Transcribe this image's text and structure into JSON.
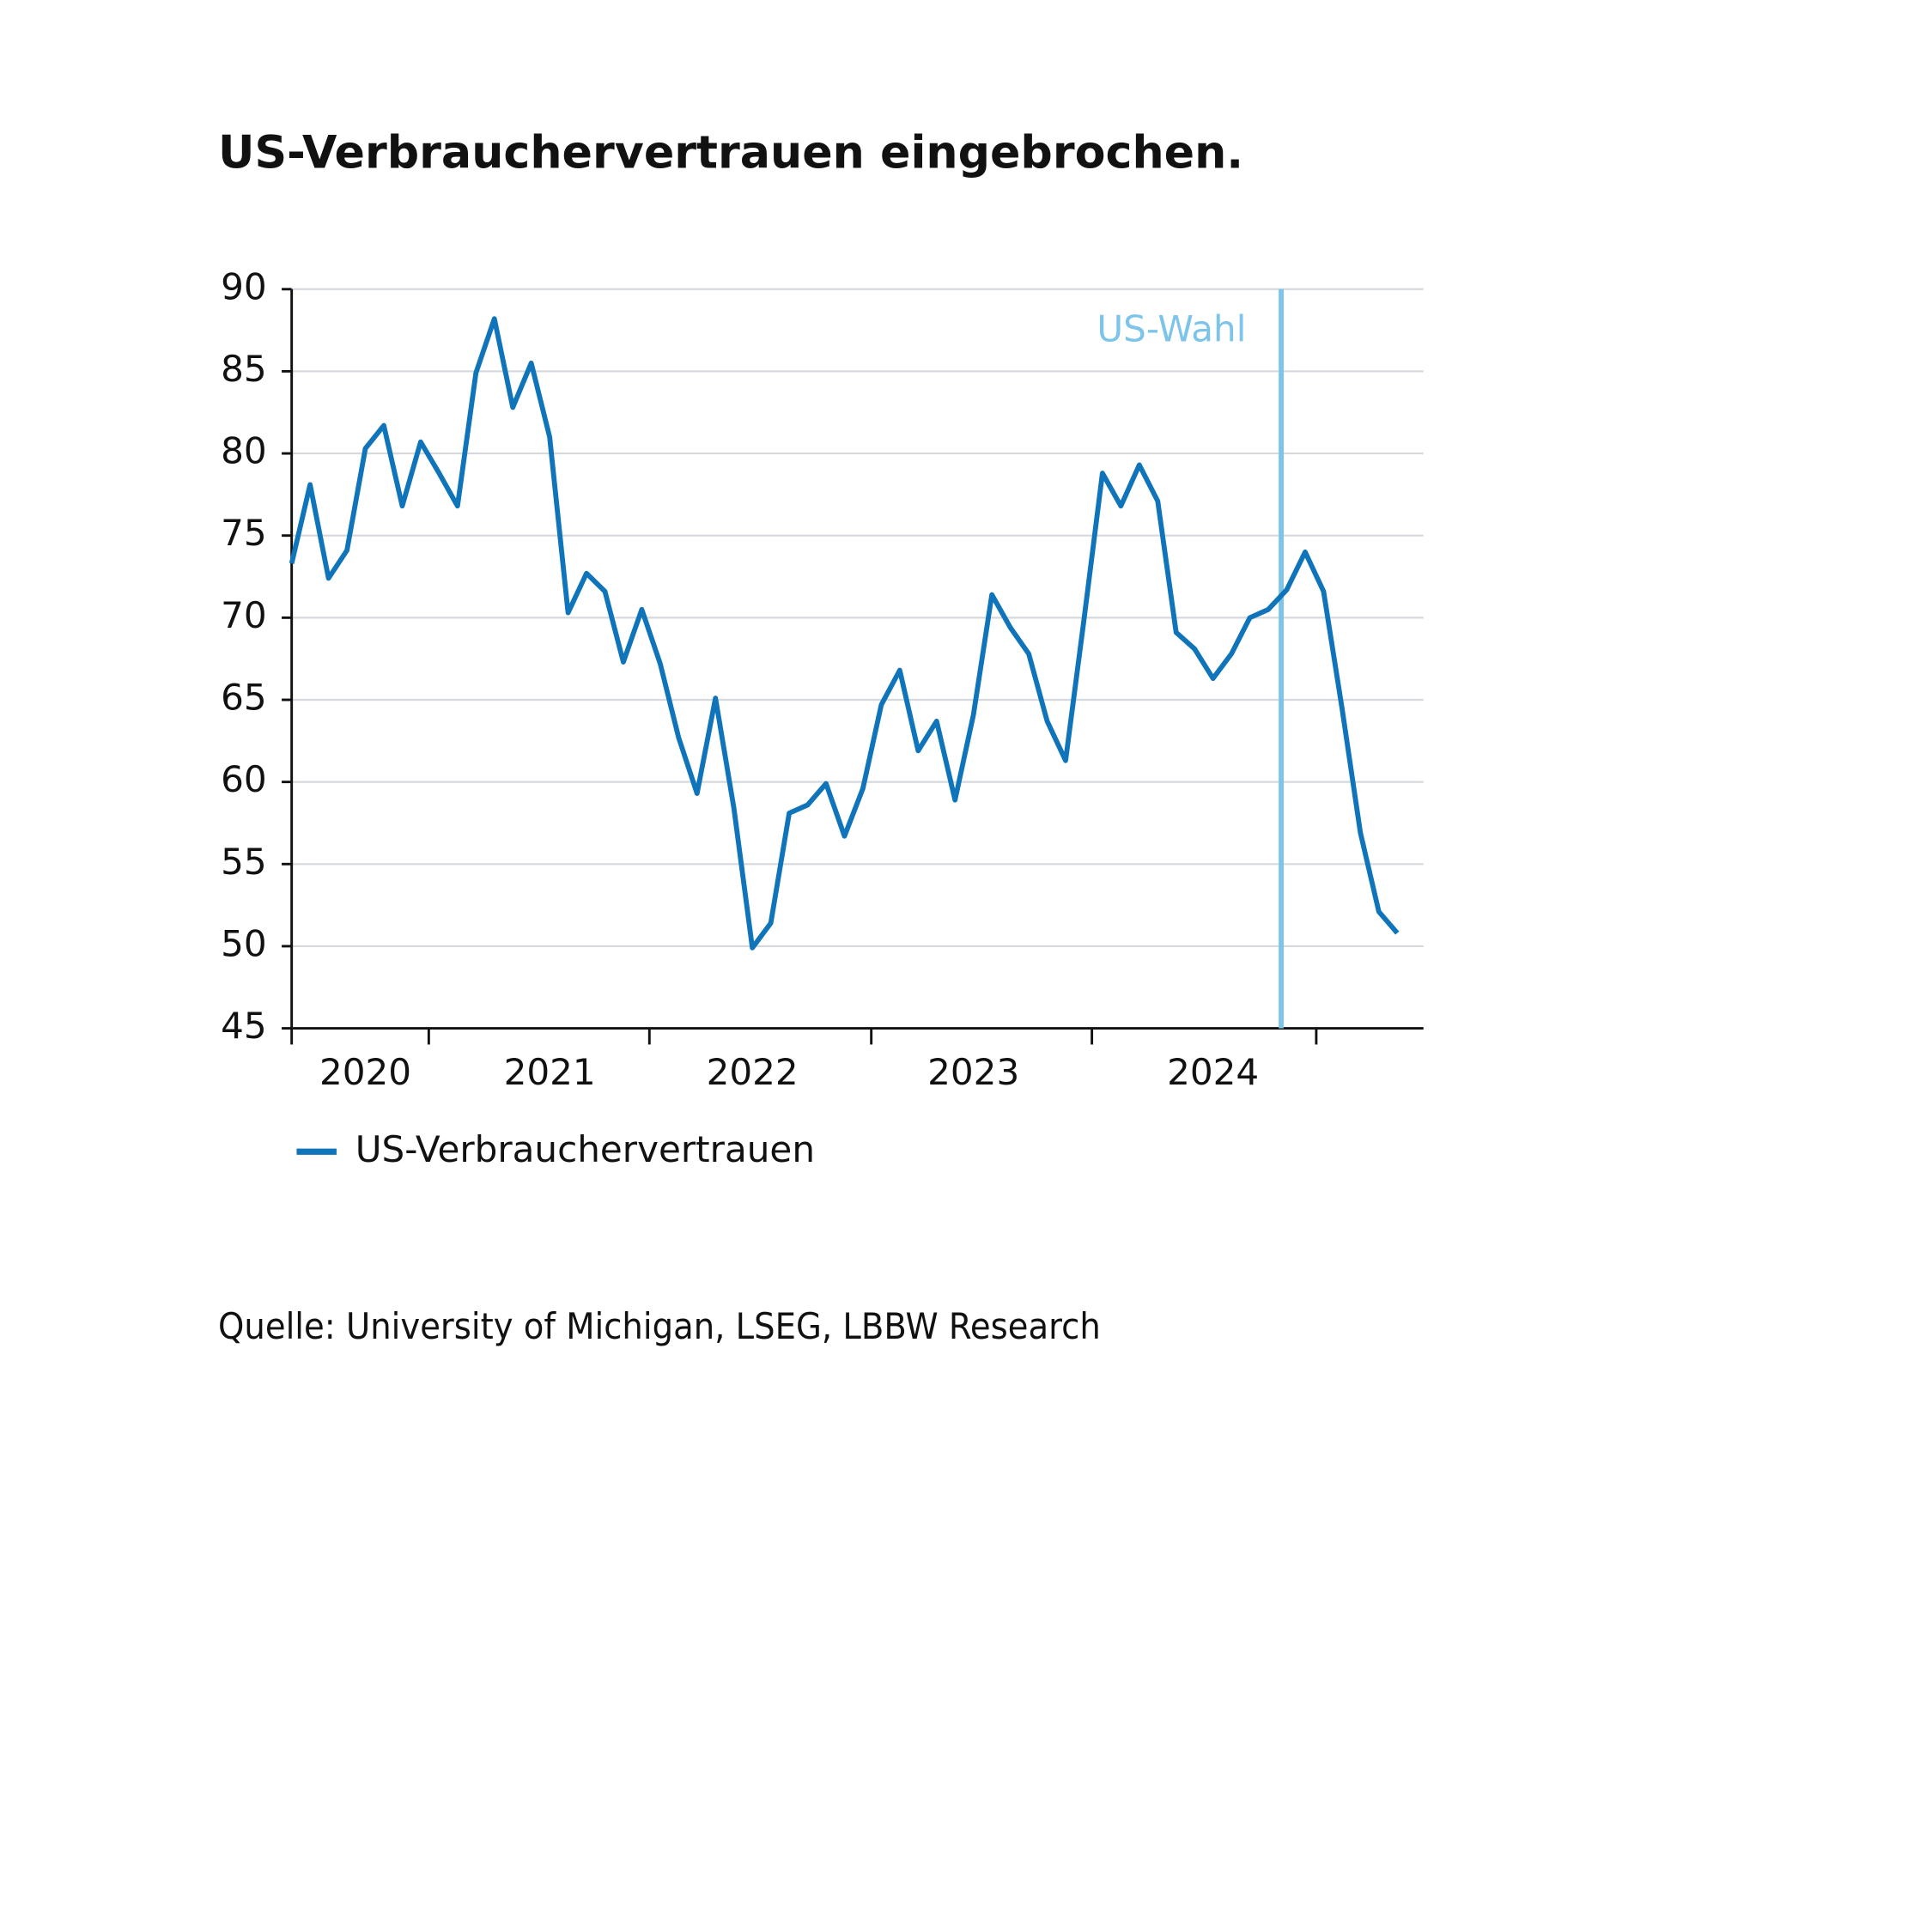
{
  "chart_data": {
    "type": "line",
    "title": "US-Verbrauchervertrauen eingebrochen.",
    "source": "Quelle: University of Michigan, LSEG, LBBW Research",
    "categories": [
      null,
      null,
      null,
      null,
      "2020",
      null,
      null,
      null,
      null,
      null,
      null,
      null,
      null,
      null,
      "2021",
      null,
      null,
      null,
      null,
      null,
      null,
      null,
      null,
      null,
      null,
      "2022",
      null,
      null,
      null,
      null,
      null,
      null,
      null,
      null,
      null,
      null,
      null,
      "2023",
      null,
      null,
      null,
      null,
      null,
      null,
      null,
      null,
      null,
      null,
      null,
      null,
      "2024",
      null,
      null,
      null,
      null,
      null,
      null,
      null,
      null,
      null,
      null
    ],
    "series": [
      {
        "name": "US-Verbrauchervertrauen",
        "color": "#0f74b9",
        "values": [
          73.3,
          78.1,
          72.4,
          74.1,
          80.3,
          81.7,
          76.8,
          80.7,
          78.8,
          76.8,
          84.9,
          88.2,
          82.8,
          85.5,
          81.0,
          70.3,
          72.7,
          71.6,
          67.3,
          70.5,
          67.2,
          62.7,
          59.3,
          65.1,
          58.4,
          49.9,
          51.4,
          58.1,
          58.6,
          59.9,
          56.7,
          59.6,
          64.7,
          66.8,
          61.9,
          63.7,
          58.9,
          64.1,
          71.4,
          69.4,
          67.8,
          63.7,
          61.3,
          69.9,
          78.8,
          76.8,
          79.3,
          77.1,
          69.1,
          68.1,
          66.3,
          67.8,
          70.0,
          70.5,
          71.7,
          74.0,
          71.6,
          64.5,
          56.9,
          52.1,
          50.8
        ]
      }
    ],
    "ylim": [
      45,
      90
    ],
    "yticks": [
      45,
      50,
      55,
      60,
      65,
      70,
      75,
      80,
      85,
      90
    ],
    "grid": true,
    "annotations": [
      {
        "text": "US-Wahl",
        "x": 53.7,
        "color": "#7cc4ea"
      }
    ]
  }
}
